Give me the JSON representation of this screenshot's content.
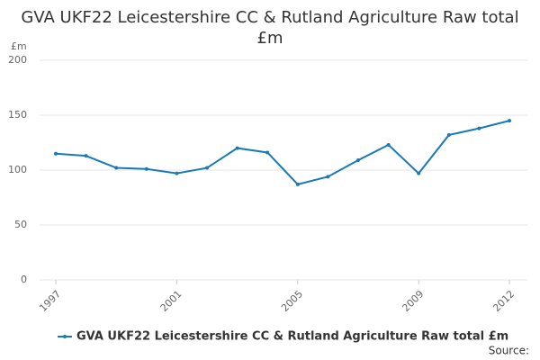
{
  "chart_data": {
    "type": "line",
    "title": "GVA UKF22 Leicestershire CC & Rutland Agriculture Raw total £m",
    "y_label": "£m",
    "source": "Source:",
    "x": [
      1997,
      1998,
      1999,
      2000,
      2001,
      2002,
      2003,
      2004,
      2005,
      2006,
      2007,
      2008,
      2009,
      2010,
      2011,
      2012
    ],
    "series": [
      {
        "name": "GVA UKF22 Leicestershire CC & Rutland Agriculture Raw total £m",
        "color": "#1a7ab8",
        "values": [
          115,
          113,
          102,
          101,
          97,
          102,
          120,
          116,
          87,
          94,
          109,
          123,
          97,
          132,
          138,
          145
        ]
      }
    ],
    "xlim": [
      1997,
      2012
    ],
    "xticks": [
      1997,
      2001,
      2005,
      2009,
      2012
    ],
    "ylim": [
      0,
      200
    ],
    "yticks": [
      0,
      50,
      100,
      150,
      200
    ],
    "grid": true
  }
}
